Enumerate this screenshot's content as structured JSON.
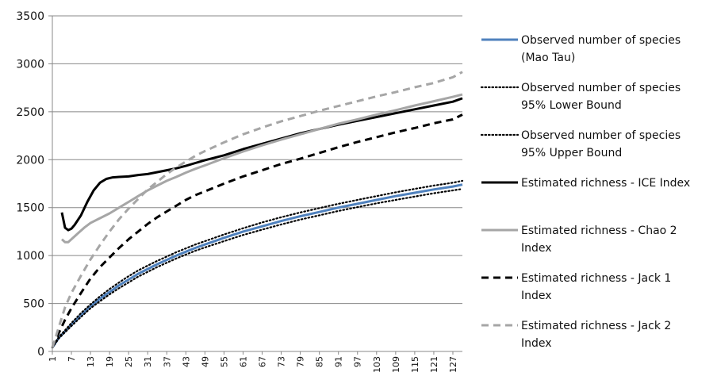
{
  "chart_data": {
    "type": "line",
    "title": "",
    "xlabel": "",
    "ylabel": "",
    "ylim": [
      0,
      3500
    ],
    "yticks": [
      0,
      500,
      1000,
      1500,
      2000,
      2500,
      3000,
      3500
    ],
    "x_range": [
      1,
      130
    ],
    "xticks": [
      1,
      7,
      13,
      19,
      25,
      31,
      37,
      43,
      49,
      55,
      61,
      67,
      73,
      79,
      85,
      91,
      97,
      103,
      109,
      115,
      121,
      127
    ],
    "grid": "horizontal",
    "legend_position": "right",
    "series": [
      {
        "name_lines": [
          "Observed number of species",
          "(Mao Tau)"
        ],
        "color": "#4f81bd",
        "style": "solid",
        "points": [
          [
            1,
            40
          ],
          [
            3,
            140
          ],
          [
            5,
            210
          ],
          [
            7,
            280
          ],
          [
            10,
            380
          ],
          [
            13,
            470
          ],
          [
            16,
            550
          ],
          [
            19,
            620
          ],
          [
            22,
            690
          ],
          [
            25,
            750
          ],
          [
            28,
            810
          ],
          [
            31,
            860
          ],
          [
            34,
            910
          ],
          [
            37,
            955
          ],
          [
            40,
            1000
          ],
          [
            43,
            1040
          ],
          [
            46,
            1080
          ],
          [
            49,
            1115
          ],
          [
            55,
            1185
          ],
          [
            61,
            1250
          ],
          [
            67,
            1305
          ],
          [
            73,
            1360
          ],
          [
            79,
            1410
          ],
          [
            85,
            1455
          ],
          [
            91,
            1500
          ],
          [
            97,
            1540
          ],
          [
            103,
            1580
          ],
          [
            109,
            1620
          ],
          [
            115,
            1655
          ],
          [
            121,
            1690
          ],
          [
            127,
            1720
          ],
          [
            130,
            1740
          ]
        ]
      },
      {
        "name_lines": [
          "Observed number of species",
          "95% Lower Bound"
        ],
        "color": "#000000",
        "style": "dotted",
        "points": [
          [
            1,
            40
          ],
          [
            3,
            135
          ],
          [
            5,
            200
          ],
          [
            7,
            265
          ],
          [
            10,
            360
          ],
          [
            13,
            450
          ],
          [
            16,
            525
          ],
          [
            19,
            595
          ],
          [
            22,
            660
          ],
          [
            25,
            720
          ],
          [
            28,
            780
          ],
          [
            31,
            830
          ],
          [
            34,
            880
          ],
          [
            37,
            925
          ],
          [
            40,
            970
          ],
          [
            43,
            1010
          ],
          [
            46,
            1050
          ],
          [
            49,
            1085
          ],
          [
            55,
            1150
          ],
          [
            61,
            1215
          ],
          [
            67,
            1270
          ],
          [
            73,
            1325
          ],
          [
            79,
            1375
          ],
          [
            85,
            1420
          ],
          [
            91,
            1465
          ],
          [
            97,
            1505
          ],
          [
            103,
            1545
          ],
          [
            109,
            1580
          ],
          [
            115,
            1615
          ],
          [
            121,
            1650
          ],
          [
            127,
            1680
          ],
          [
            130,
            1695
          ]
        ]
      },
      {
        "name_lines": [
          "Observed number of species",
          "95% Upper Bound"
        ],
        "color": "#000000",
        "style": "dotted",
        "points": [
          [
            1,
            45
          ],
          [
            3,
            150
          ],
          [
            5,
            220
          ],
          [
            7,
            295
          ],
          [
            10,
            400
          ],
          [
            13,
            490
          ],
          [
            16,
            575
          ],
          [
            19,
            650
          ],
          [
            22,
            720
          ],
          [
            25,
            785
          ],
          [
            28,
            845
          ],
          [
            31,
            895
          ],
          [
            34,
            945
          ],
          [
            37,
            990
          ],
          [
            40,
            1035
          ],
          [
            43,
            1075
          ],
          [
            46,
            1115
          ],
          [
            49,
            1150
          ],
          [
            55,
            1220
          ],
          [
            61,
            1285
          ],
          [
            67,
            1345
          ],
          [
            73,
            1400
          ],
          [
            79,
            1450
          ],
          [
            85,
            1495
          ],
          [
            91,
            1540
          ],
          [
            97,
            1580
          ],
          [
            103,
            1620
          ],
          [
            109,
            1660
          ],
          [
            115,
            1695
          ],
          [
            121,
            1730
          ],
          [
            127,
            1760
          ],
          [
            130,
            1780
          ]
        ]
      },
      {
        "name_lines": [
          "Estimated richness - ICE Index"
        ],
        "color": "#000000",
        "style": "solid",
        "points": [
          [
            4,
            1450
          ],
          [
            5,
            1290
          ],
          [
            6,
            1265
          ],
          [
            7,
            1280
          ],
          [
            8,
            1320
          ],
          [
            10,
            1420
          ],
          [
            12,
            1560
          ],
          [
            14,
            1680
          ],
          [
            16,
            1760
          ],
          [
            18,
            1800
          ],
          [
            20,
            1815
          ],
          [
            22,
            1820
          ],
          [
            25,
            1825
          ],
          [
            28,
            1840
          ],
          [
            31,
            1850
          ],
          [
            34,
            1870
          ],
          [
            37,
            1890
          ],
          [
            40,
            1910
          ],
          [
            43,
            1935
          ],
          [
            46,
            1965
          ],
          [
            49,
            1995
          ],
          [
            55,
            2045
          ],
          [
            61,
            2110
          ],
          [
            67,
            2165
          ],
          [
            73,
            2220
          ],
          [
            79,
            2275
          ],
          [
            85,
            2320
          ],
          [
            91,
            2365
          ],
          [
            97,
            2405
          ],
          [
            103,
            2445
          ],
          [
            109,
            2485
          ],
          [
            115,
            2525
          ],
          [
            121,
            2565
          ],
          [
            127,
            2605
          ],
          [
            130,
            2640
          ]
        ]
      },
      {
        "name_lines": [
          "Estimated richness - Chao 2",
          "Index"
        ],
        "color": "#a6a6a6",
        "style": "solid",
        "points": [
          [
            4,
            1170
          ],
          [
            5,
            1140
          ],
          [
            6,
            1140
          ],
          [
            7,
            1170
          ],
          [
            9,
            1230
          ],
          [
            11,
            1290
          ],
          [
            13,
            1340
          ],
          [
            16,
            1390
          ],
          [
            19,
            1440
          ],
          [
            22,
            1500
          ],
          [
            25,
            1560
          ],
          [
            28,
            1620
          ],
          [
            31,
            1680
          ],
          [
            34,
            1730
          ],
          [
            37,
            1780
          ],
          [
            40,
            1820
          ],
          [
            43,
            1865
          ],
          [
            46,
            1905
          ],
          [
            49,
            1940
          ],
          [
            55,
            2015
          ],
          [
            61,
            2085
          ],
          [
            67,
            2150
          ],
          [
            73,
            2210
          ],
          [
            79,
            2265
          ],
          [
            85,
            2320
          ],
          [
            91,
            2375
          ],
          [
            97,
            2420
          ],
          [
            103,
            2470
          ],
          [
            109,
            2515
          ],
          [
            115,
            2565
          ],
          [
            121,
            2610
          ],
          [
            127,
            2655
          ],
          [
            130,
            2680
          ]
        ]
      },
      {
        "name_lines": [
          "Estimated richness - Jack 1",
          "Index"
        ],
        "color": "#000000",
        "style": "dashed",
        "points": [
          [
            1,
            40
          ],
          [
            3,
            190
          ],
          [
            5,
            330
          ],
          [
            7,
            450
          ],
          [
            10,
            610
          ],
          [
            13,
            760
          ],
          [
            16,
            880
          ],
          [
            19,
            980
          ],
          [
            22,
            1080
          ],
          [
            25,
            1170
          ],
          [
            28,
            1250
          ],
          [
            31,
            1330
          ],
          [
            34,
            1400
          ],
          [
            37,
            1460
          ],
          [
            40,
            1520
          ],
          [
            43,
            1580
          ],
          [
            46,
            1630
          ],
          [
            49,
            1670
          ],
          [
            55,
            1750
          ],
          [
            61,
            1825
          ],
          [
            67,
            1890
          ],
          [
            73,
            1955
          ],
          [
            79,
            2010
          ],
          [
            85,
            2070
          ],
          [
            91,
            2130
          ],
          [
            97,
            2185
          ],
          [
            103,
            2235
          ],
          [
            109,
            2285
          ],
          [
            115,
            2330
          ],
          [
            121,
            2380
          ],
          [
            127,
            2420
          ],
          [
            130,
            2470
          ]
        ]
      },
      {
        "name_lines": [
          "Estimated richness - Jack 2",
          "Index"
        ],
        "color": "#a6a6a6",
        "style": "dashed",
        "points": [
          [
            1,
            40
          ],
          [
            3,
            250
          ],
          [
            5,
            460
          ],
          [
            7,
            610
          ],
          [
            10,
            790
          ],
          [
            13,
            960
          ],
          [
            16,
            1110
          ],
          [
            19,
            1250
          ],
          [
            22,
            1380
          ],
          [
            25,
            1490
          ],
          [
            28,
            1590
          ],
          [
            31,
            1690
          ],
          [
            34,
            1770
          ],
          [
            37,
            1850
          ],
          [
            40,
            1920
          ],
          [
            43,
            1980
          ],
          [
            46,
            2040
          ],
          [
            49,
            2090
          ],
          [
            55,
            2180
          ],
          [
            61,
            2265
          ],
          [
            67,
            2335
          ],
          [
            73,
            2400
          ],
          [
            79,
            2455
          ],
          [
            85,
            2510
          ],
          [
            91,
            2560
          ],
          [
            97,
            2610
          ],
          [
            103,
            2660
          ],
          [
            109,
            2705
          ],
          [
            115,
            2755
          ],
          [
            121,
            2800
          ],
          [
            127,
            2860
          ],
          [
            130,
            2915
          ]
        ]
      }
    ]
  }
}
